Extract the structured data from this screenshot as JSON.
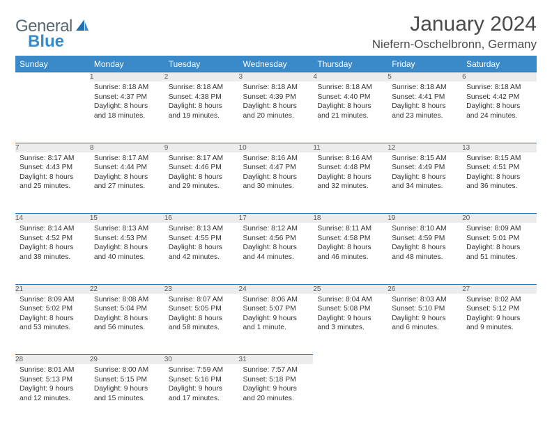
{
  "logo": {
    "part1": "General",
    "part2": "Blue"
  },
  "title": "January 2024",
  "location": "Niefern-Oschelbronn, Germany",
  "headers": [
    "Sunday",
    "Monday",
    "Tuesday",
    "Wednesday",
    "Thursday",
    "Friday",
    "Saturday"
  ],
  "colors": {
    "header_bg": "#3a8ac9",
    "header_text": "#ffffff",
    "daynum_bg": "#ececec",
    "rule": "#1f6fb0",
    "logo_gray": "#5b6770",
    "logo_blue": "#3a8ac9"
  },
  "weeks": [
    [
      null,
      {
        "n": "1",
        "sr": "Sunrise: 8:18 AM",
        "ss": "Sunset: 4:37 PM",
        "d1": "Daylight: 8 hours",
        "d2": "and 18 minutes."
      },
      {
        "n": "2",
        "sr": "Sunrise: 8:18 AM",
        "ss": "Sunset: 4:38 PM",
        "d1": "Daylight: 8 hours",
        "d2": "and 19 minutes."
      },
      {
        "n": "3",
        "sr": "Sunrise: 8:18 AM",
        "ss": "Sunset: 4:39 PM",
        "d1": "Daylight: 8 hours",
        "d2": "and 20 minutes."
      },
      {
        "n": "4",
        "sr": "Sunrise: 8:18 AM",
        "ss": "Sunset: 4:40 PM",
        "d1": "Daylight: 8 hours",
        "d2": "and 21 minutes."
      },
      {
        "n": "5",
        "sr": "Sunrise: 8:18 AM",
        "ss": "Sunset: 4:41 PM",
        "d1": "Daylight: 8 hours",
        "d2": "and 23 minutes."
      },
      {
        "n": "6",
        "sr": "Sunrise: 8:18 AM",
        "ss": "Sunset: 4:42 PM",
        "d1": "Daylight: 8 hours",
        "d2": "and 24 minutes."
      }
    ],
    [
      {
        "n": "7",
        "sr": "Sunrise: 8:17 AM",
        "ss": "Sunset: 4:43 PM",
        "d1": "Daylight: 8 hours",
        "d2": "and 25 minutes."
      },
      {
        "n": "8",
        "sr": "Sunrise: 8:17 AM",
        "ss": "Sunset: 4:44 PM",
        "d1": "Daylight: 8 hours",
        "d2": "and 27 minutes."
      },
      {
        "n": "9",
        "sr": "Sunrise: 8:17 AM",
        "ss": "Sunset: 4:46 PM",
        "d1": "Daylight: 8 hours",
        "d2": "and 29 minutes."
      },
      {
        "n": "10",
        "sr": "Sunrise: 8:16 AM",
        "ss": "Sunset: 4:47 PM",
        "d1": "Daylight: 8 hours",
        "d2": "and 30 minutes."
      },
      {
        "n": "11",
        "sr": "Sunrise: 8:16 AM",
        "ss": "Sunset: 4:48 PM",
        "d1": "Daylight: 8 hours",
        "d2": "and 32 minutes."
      },
      {
        "n": "12",
        "sr": "Sunrise: 8:15 AM",
        "ss": "Sunset: 4:49 PM",
        "d1": "Daylight: 8 hours",
        "d2": "and 34 minutes."
      },
      {
        "n": "13",
        "sr": "Sunrise: 8:15 AM",
        "ss": "Sunset: 4:51 PM",
        "d1": "Daylight: 8 hours",
        "d2": "and 36 minutes."
      }
    ],
    [
      {
        "n": "14",
        "sr": "Sunrise: 8:14 AM",
        "ss": "Sunset: 4:52 PM",
        "d1": "Daylight: 8 hours",
        "d2": "and 38 minutes."
      },
      {
        "n": "15",
        "sr": "Sunrise: 8:13 AM",
        "ss": "Sunset: 4:53 PM",
        "d1": "Daylight: 8 hours",
        "d2": "and 40 minutes."
      },
      {
        "n": "16",
        "sr": "Sunrise: 8:13 AM",
        "ss": "Sunset: 4:55 PM",
        "d1": "Daylight: 8 hours",
        "d2": "and 42 minutes."
      },
      {
        "n": "17",
        "sr": "Sunrise: 8:12 AM",
        "ss": "Sunset: 4:56 PM",
        "d1": "Daylight: 8 hours",
        "d2": "and 44 minutes."
      },
      {
        "n": "18",
        "sr": "Sunrise: 8:11 AM",
        "ss": "Sunset: 4:58 PM",
        "d1": "Daylight: 8 hours",
        "d2": "and 46 minutes."
      },
      {
        "n": "19",
        "sr": "Sunrise: 8:10 AM",
        "ss": "Sunset: 4:59 PM",
        "d1": "Daylight: 8 hours",
        "d2": "and 48 minutes."
      },
      {
        "n": "20",
        "sr": "Sunrise: 8:09 AM",
        "ss": "Sunset: 5:01 PM",
        "d1": "Daylight: 8 hours",
        "d2": "and 51 minutes."
      }
    ],
    [
      {
        "n": "21",
        "sr": "Sunrise: 8:09 AM",
        "ss": "Sunset: 5:02 PM",
        "d1": "Daylight: 8 hours",
        "d2": "and 53 minutes."
      },
      {
        "n": "22",
        "sr": "Sunrise: 8:08 AM",
        "ss": "Sunset: 5:04 PM",
        "d1": "Daylight: 8 hours",
        "d2": "and 56 minutes."
      },
      {
        "n": "23",
        "sr": "Sunrise: 8:07 AM",
        "ss": "Sunset: 5:05 PM",
        "d1": "Daylight: 8 hours",
        "d2": "and 58 minutes."
      },
      {
        "n": "24",
        "sr": "Sunrise: 8:06 AM",
        "ss": "Sunset: 5:07 PM",
        "d1": "Daylight: 9 hours",
        "d2": "and 1 minute."
      },
      {
        "n": "25",
        "sr": "Sunrise: 8:04 AM",
        "ss": "Sunset: 5:08 PM",
        "d1": "Daylight: 9 hours",
        "d2": "and 3 minutes."
      },
      {
        "n": "26",
        "sr": "Sunrise: 8:03 AM",
        "ss": "Sunset: 5:10 PM",
        "d1": "Daylight: 9 hours",
        "d2": "and 6 minutes."
      },
      {
        "n": "27",
        "sr": "Sunrise: 8:02 AM",
        "ss": "Sunset: 5:12 PM",
        "d1": "Daylight: 9 hours",
        "d2": "and 9 minutes."
      }
    ],
    [
      {
        "n": "28",
        "sr": "Sunrise: 8:01 AM",
        "ss": "Sunset: 5:13 PM",
        "d1": "Daylight: 9 hours",
        "d2": "and 12 minutes."
      },
      {
        "n": "29",
        "sr": "Sunrise: 8:00 AM",
        "ss": "Sunset: 5:15 PM",
        "d1": "Daylight: 9 hours",
        "d2": "and 15 minutes."
      },
      {
        "n": "30",
        "sr": "Sunrise: 7:59 AM",
        "ss": "Sunset: 5:16 PM",
        "d1": "Daylight: 9 hours",
        "d2": "and 17 minutes."
      },
      {
        "n": "31",
        "sr": "Sunrise: 7:57 AM",
        "ss": "Sunset: 5:18 PM",
        "d1": "Daylight: 9 hours",
        "d2": "and 20 minutes."
      },
      null,
      null,
      null
    ]
  ]
}
